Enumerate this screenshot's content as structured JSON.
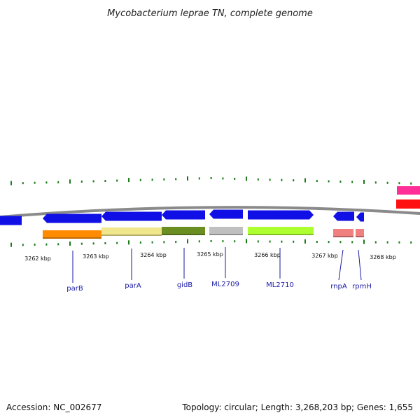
{
  "title": "Mycobacterium leprae TN, complete genome",
  "footer": {
    "accession": "Accession: NC_002677",
    "summary": "Topology: circular; Length: 3,268,203 bp; Genes: 1,655"
  },
  "colors": {
    "gene_arrow": "#1010e6",
    "backbone": "#8a8a8a",
    "tick": "#1a7a1a",
    "label": "#1a1aa6",
    "right_pink": "#ff2f97",
    "right_red": "#ff1010"
  },
  "scale_labels": [
    "3262 kbp",
    "3263 kbp",
    "3264 kbp",
    "3265 kbp",
    "3266 kbp",
    "3267 kbp",
    "3268 kbp"
  ],
  "genes": [
    {
      "name": "parB",
      "category_color": "#ff8c00"
    },
    {
      "name": "parA",
      "category_color": "#f0e68c"
    },
    {
      "name": "gidB",
      "category_color": "#6b8e23"
    },
    {
      "name": "ML2709",
      "category_color": "#c0c0c0"
    },
    {
      "name": "ML2710",
      "category_color": "#adff2f"
    },
    {
      "name": "rnpA",
      "category_color": "#f08080"
    },
    {
      "name": "rpmH",
      "category_color": "#f08080"
    }
  ]
}
